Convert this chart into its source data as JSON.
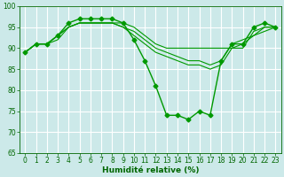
{
  "xlabel": "Humidité relative (%)",
  "xlim": [
    -0.5,
    23.5
  ],
  "ylim": [
    65,
    100
  ],
  "yticks": [
    65,
    70,
    75,
    80,
    85,
    90,
    95,
    100
  ],
  "xticks": [
    0,
    1,
    2,
    3,
    4,
    5,
    6,
    7,
    8,
    9,
    10,
    11,
    12,
    13,
    14,
    15,
    16,
    17,
    18,
    19,
    20,
    21,
    22,
    23
  ],
  "background_color": "#cce9e9",
  "grid_color": "#ffffff",
  "line_color": "#009900",
  "lines": [
    {
      "x": [
        0,
        1,
        2,
        3,
        4,
        5,
        6,
        7,
        8,
        9,
        10,
        11,
        12,
        13,
        14,
        15,
        16,
        17,
        18,
        19,
        20,
        21,
        22,
        23
      ],
      "y": [
        89,
        91,
        91,
        93,
        96,
        97,
        97,
        97,
        97,
        96,
        92,
        87,
        81,
        74,
        74,
        73,
        75,
        74,
        87,
        91,
        91,
        95,
        96,
        95
      ],
      "marker": "D",
      "markersize": 2.5,
      "linewidth": 1.0
    },
    {
      "x": [
        0,
        1,
        2,
        3,
        4,
        5,
        6,
        7,
        8,
        9,
        10,
        11,
        12,
        13,
        14,
        15,
        16,
        17,
        18,
        19,
        20,
        21,
        22,
        23
      ],
      "y": [
        89,
        91,
        91,
        93,
        95,
        96,
        96,
        96,
        96,
        96,
        95,
        93,
        91,
        90,
        90,
        90,
        90,
        90,
        90,
        90,
        90,
        94,
        95,
        95
      ],
      "marker": null,
      "linewidth": 0.8
    },
    {
      "x": [
        0,
        1,
        2,
        3,
        4,
        5,
        6,
        7,
        8,
        9,
        10,
        11,
        12,
        13,
        14,
        15,
        16,
        17,
        18,
        19,
        20,
        21,
        22,
        23
      ],
      "y": [
        89,
        91,
        91,
        93,
        95,
        96,
        96,
        96,
        96,
        95,
        94,
        92,
        90,
        89,
        88,
        87,
        87,
        86,
        87,
        91,
        92,
        93,
        95,
        95
      ],
      "marker": null,
      "linewidth": 0.8
    },
    {
      "x": [
        0,
        1,
        2,
        3,
        4,
        5,
        6,
        7,
        8,
        9,
        10,
        11,
        12,
        13,
        14,
        15,
        16,
        17,
        18,
        19,
        20,
        21,
        22,
        23
      ],
      "y": [
        89,
        91,
        91,
        92,
        95,
        96,
        96,
        96,
        96,
        95,
        93,
        91,
        89,
        88,
        87,
        86,
        86,
        85,
        86,
        90,
        91,
        93,
        94,
        95
      ],
      "marker": null,
      "linewidth": 0.8
    }
  ],
  "xlabel_fontsize": 6.5,
  "tick_fontsize": 5.5
}
